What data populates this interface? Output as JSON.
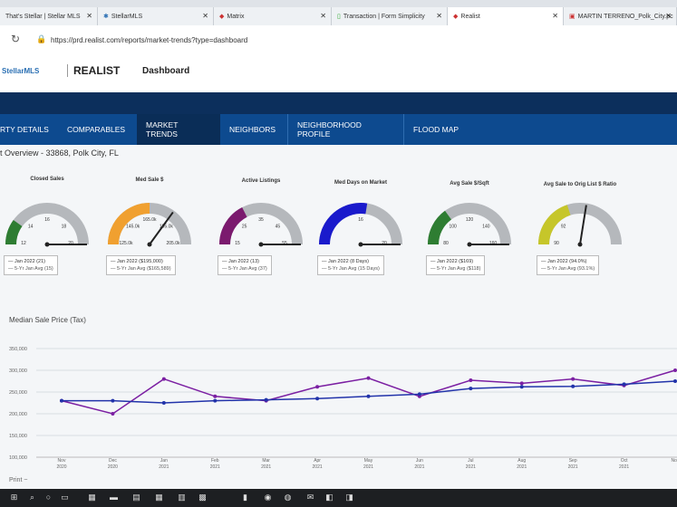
{
  "browser": {
    "tabs": [
      {
        "label": "That's Stellar | Stellar MLS",
        "active": false
      },
      {
        "label": "StellarMLS",
        "active": false
      },
      {
        "label": "Matrix",
        "active": false
      },
      {
        "label": "Transaction | Form Simplicity",
        "active": false
      },
      {
        "label": "Realist",
        "active": true
      },
      {
        "label": "MARTIN TERRENO_Polk_City.pc",
        "active": false
      }
    ],
    "url": "https://prd.realist.com/reports/market-trends?type=dashboard"
  },
  "header": {
    "logo": "StellarMLS",
    "app_name": "REALIST",
    "page": "Dashboard"
  },
  "nav": [
    {
      "label": "RTY DETAILS"
    },
    {
      "label": "COMPARABLES"
    },
    {
      "label": "MARKET TRENDS",
      "selected": true
    },
    {
      "label": "NEIGHBORS"
    },
    {
      "label": "NEIGHBORHOOD PROFILE"
    },
    {
      "label": "FLOOD MAP"
    }
  ],
  "overview_title": "t Overview - 33868, Polk City, FL",
  "gauges": [
    {
      "title": "Closed Sales",
      "color": "#2e7d32",
      "fill": 0.2,
      "needle": 1.0,
      "ticks": [
        "12",
        "14",
        "16",
        "18",
        "20"
      ],
      "legend": [
        "Jan 2022 (21)",
        "5-Yr Jan Avg (15)"
      ]
    },
    {
      "title": "Med Sale $",
      "color": "#f0a030",
      "fill": 0.5,
      "needle": 0.7,
      "ticks": [
        "125.0k",
        "145.0k",
        "165.0k",
        "185.0k",
        "205.0k"
      ],
      "legend": [
        "Jan 2022 ($195,000)",
        "5-Yr Jan Avg ($165,589)"
      ]
    },
    {
      "title": "Active Listings",
      "color": "#7b1a6e",
      "fill": 0.35,
      "needle": 1.0,
      "ticks": [
        "15",
        "25",
        "35",
        "45",
        "55"
      ],
      "legend": [
        "Jan 2022 (13)",
        "5-Yr Jan Avg (37)"
      ]
    },
    {
      "title": "Med Days on Market",
      "color": "#1a1acc",
      "fill": 0.55,
      "needle": 1.0,
      "ticks": [
        "",
        "",
        "16",
        "",
        "20"
      ],
      "legend": [
        "Jan 2022 (8 Days)",
        "5-Yr Jan Avg (15 Days)"
      ]
    },
    {
      "title": "Avg Sale $/Sqft",
      "color": "#2e7d32",
      "fill": 0.3,
      "needle": 1.0,
      "ticks": [
        "80",
        "100",
        "120",
        "140",
        "160"
      ],
      "legend": [
        "Jan 2022 ($169)",
        "5-Yr Jan Avg ($118)"
      ]
    },
    {
      "title": "Avg Sale to Orig List $ Ratio",
      "color": "#c6c62a",
      "fill": 0.4,
      "needle": 0.55,
      "ticks": [
        "90",
        "92",
        "",
        "",
        ""
      ],
      "legend": [
        "Jan 2022 (94.0%)",
        "5-Yr Jan Avg (93.1%)"
      ]
    }
  ],
  "chart_title": "Median Sale Price (Tax)",
  "print_label": "Print ~",
  "chart_data": {
    "type": "line",
    "categories": [
      "Nov 2020",
      "Dec 2020",
      "Jan 2021",
      "Feb 2021",
      "Mar 2021",
      "Apr 2021",
      "May 2021",
      "Jun 2021",
      "Jul 2021",
      "Aug 2021",
      "Sep 2021",
      "Oct 2021",
      "Nov"
    ],
    "yticks": [
      "350,000",
      "300,000",
      "250,000",
      "200,000",
      "150,000",
      "100,000"
    ],
    "ylim": [
      100000,
      350000
    ],
    "series": [
      {
        "color": "#7b1fa2",
        "values": [
          230000,
          200000,
          280000,
          240000,
          230000,
          262000,
          282000,
          240000,
          277000,
          270000,
          280000,
          265000,
          300000
        ]
      },
      {
        "color": "#2233aa",
        "values": [
          230000,
          230000,
          225000,
          230000,
          232000,
          235000,
          240000,
          245000,
          258000,
          262000,
          263000,
          268000,
          275000
        ]
      }
    ]
  }
}
